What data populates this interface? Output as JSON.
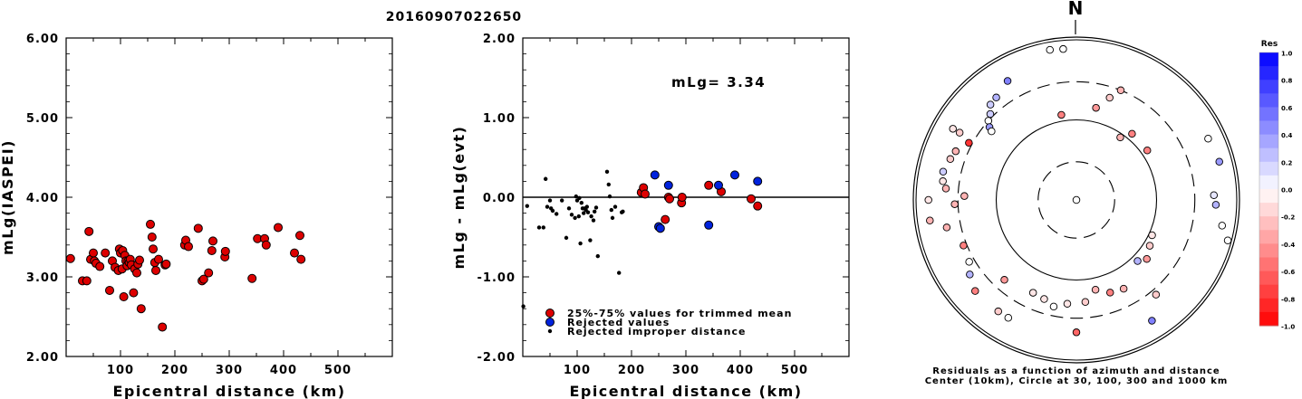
{
  "event_id": "20160907022650",
  "mlg_text": "mLg= 3.34",
  "north_label": "N",
  "caption_line1": "Residuals as a function of azimuth and distance",
  "caption_line2": "Center (10km), Circle at 30, 100, 300 and 1000 km",
  "legend": {
    "trimmed": "25%-75% values for trimmed mean",
    "rejected": "Rejected values",
    "improper": "Rejected improper distance"
  },
  "colors": {
    "trimmed": "#dd0000",
    "rejected": "#0022dd",
    "improper": "#000000",
    "colorbar_blue": "#0000ff",
    "colorbar_red": "#ff0000"
  },
  "colorbar": {
    "title": "Res",
    "ticks": [
      "1.0",
      "0.8",
      "0.6",
      "0.4",
      "0.2",
      "0.0",
      "-0.2",
      "-0.4",
      "-0.6",
      "-0.8",
      "-1.0"
    ]
  },
  "chart_data": [
    {
      "type": "scatter",
      "title": "",
      "xlabel": "Epicentral distance (km)",
      "ylabel": "mLg(IASPEI)",
      "xlim": [
        0,
        600
      ],
      "ylim": [
        2.0,
        6.0
      ],
      "xticks": [
        "100",
        "200",
        "300",
        "400",
        "500"
      ],
      "yticks": [
        "2.00",
        "3.00",
        "4.00",
        "5.00",
        "6.00"
      ],
      "series": [
        {
          "x": [
            8,
            30,
            38,
            42,
            45,
            50,
            52,
            55,
            62,
            72,
            80,
            85,
            90,
            96,
            98,
            100,
            103,
            104,
            106,
            108,
            110,
            112,
            114,
            116,
            118,
            120,
            124,
            126,
            130,
            132,
            135,
            138,
            155,
            158,
            160,
            163,
            165,
            170,
            177,
            182,
            184,
            218,
            220,
            225,
            243,
            250,
            253,
            262,
            268,
            270,
            292,
            293,
            342,
            352,
            365,
            368,
            390,
            420,
            430,
            432
          ],
          "y": [
            3.23,
            2.95,
            2.95,
            3.57,
            3.22,
            3.3,
            3.2,
            3.17,
            3.13,
            3.3,
            2.83,
            3.2,
            3.12,
            3.08,
            3.35,
            3.3,
            3.1,
            3.33,
            2.75,
            3.27,
            3.2,
            3.14,
            3.2,
            3.18,
            3.22,
            3.15,
            2.8,
            3.1,
            3.05,
            3.16,
            3.21,
            2.6,
            3.66,
            3.5,
            3.35,
            3.18,
            3.08,
            3.22,
            2.37,
            3.15,
            3.16,
            3.4,
            3.46,
            3.38,
            3.61,
            2.95,
            2.97,
            3.05,
            3.33,
            3.45,
            3.25,
            3.32,
            2.98,
            3.48,
            3.48,
            3.4,
            3.62,
            3.3,
            3.52,
            3.22
          ]
        }
      ]
    },
    {
      "type": "scatter",
      "title": "",
      "xlabel": "Epicentral distance (km)",
      "ylabel": "mLg - mLg(evt)",
      "xlim": [
        0,
        600
      ],
      "ylim": [
        -2.0,
        2.0
      ],
      "xticks": [
        "100",
        "200",
        "300",
        "400",
        "500"
      ],
      "yticks": [
        "-2.00",
        "-1.00",
        "0.00",
        "1.00",
        "2.00"
      ],
      "reference_line": 0,
      "series": [
        {
          "name": "25%-75% values for trimmed mean",
          "x": [
            218,
            222,
            225,
            262,
            268,
            270,
            292,
            293,
            342,
            365,
            420,
            432
          ],
          "y": [
            0.06,
            0.12,
            0.04,
            -0.28,
            0.0,
            -0.02,
            -0.07,
            0.0,
            0.15,
            0.07,
            -0.02,
            -0.11
          ]
        },
        {
          "name": "Rejected values",
          "x": [
            243,
            250,
            253,
            268,
            342,
            360,
            390,
            432
          ],
          "y": [
            0.28,
            -0.37,
            -0.39,
            0.15,
            -0.35,
            0.15,
            0.28,
            0.2
          ]
        },
        {
          "name": "Rejected improper distance",
          "x": [
            1,
            8,
            30,
            38,
            42,
            45,
            50,
            52,
            55,
            62,
            72,
            80,
            85,
            90,
            96,
            98,
            100,
            103,
            104,
            106,
            108,
            110,
            112,
            114,
            116,
            118,
            120,
            124,
            126,
            130,
            132,
            135,
            138,
            155,
            158,
            160,
            163,
            165,
            170,
            177,
            182,
            184
          ],
          "y": [
            -1.37,
            -0.11,
            -0.38,
            -0.38,
            0.23,
            -0.12,
            -0.04,
            -0.14,
            -0.17,
            -0.21,
            -0.04,
            -0.51,
            -0.14,
            -0.22,
            -0.26,
            0.01,
            -0.04,
            -0.24,
            -0.01,
            -0.58,
            -0.07,
            -0.14,
            -0.2,
            -0.14,
            -0.16,
            -0.12,
            -0.19,
            -0.54,
            -0.24,
            -0.29,
            -0.18,
            -0.13,
            -0.74,
            0.32,
            0.16,
            0.01,
            -0.16,
            -0.26,
            -0.12,
            -0.95,
            -0.19,
            -0.18
          ]
        }
      ]
    },
    {
      "type": "scatter",
      "title": "",
      "projection": "polar azimuth vs log distance",
      "distance_circles_km": [
        30,
        100,
        300,
        1000
      ],
      "center_km": 10,
      "series": [
        {
          "name": "stations",
          "azimuth_deg": [
            0,
            350,
            355,
            330,
            322,
            318,
            315,
            312,
            310,
            309,
            300,
            298,
            292,
            288,
            282,
            278,
            275,
            272,
            270,
            268,
            262,
            258,
            248,
            240,
            235,
            228,
            222,
            215,
            210,
            205,
            198,
            192,
            185,
            180,
            175,
            168,
            160,
            152,
            148,
            140,
            135,
            130,
            122,
            115,
            105,
            100,
            92,
            88,
            75,
            65,
            55,
            40,
            35,
            22,
            18,
            12,
            350,
            300
          ],
          "distance_km": [
            10,
            800,
            780,
            520,
            420,
            400,
            330,
            300,
            260,
            230,
            600,
            330,
            420,
            450,
            500,
            480,
            430,
            250,
            700,
            330,
            700,
            450,
            330,
            350,
            420,
            500,
            220,
            500,
            500,
            190,
            200,
            230,
            200,
            450,
            190,
            140,
            170,
            180,
            600,
            350,
            120,
            140,
            120,
            110,
            900,
            700,
            550,
            520,
            700,
            650,
            120,
            120,
            90,
            300,
            220,
            150,
            120,
            480
          ],
          "residual": [
            0.0,
            0.0,
            0.0,
            0.5,
            0.3,
            0.2,
            0.2,
            0.0,
            0.4,
            0.0,
            -0.1,
            -0.8,
            -0.3,
            -0.2,
            0.2,
            -0.1,
            -0.3,
            -0.3,
            -0.1,
            -0.3,
            -0.3,
            -0.3,
            -0.5,
            0.0,
            0.3,
            -0.5,
            -0.4,
            -0.2,
            0.0,
            -0.1,
            -0.1,
            0.0,
            -0.1,
            -0.6,
            -0.2,
            -0.3,
            -0.5,
            -0.3,
            0.5,
            -0.2,
            0.3,
            -0.4,
            -0.2,
            -0.1,
            0.0,
            0.0,
            0.3,
            0.1,
            0.4,
            0.0,
            -0.5,
            -0.5,
            -0.3,
            -0.3,
            -0.2,
            -0.4,
            -0.5,
            -0.2
          ]
        }
      ]
    }
  ]
}
